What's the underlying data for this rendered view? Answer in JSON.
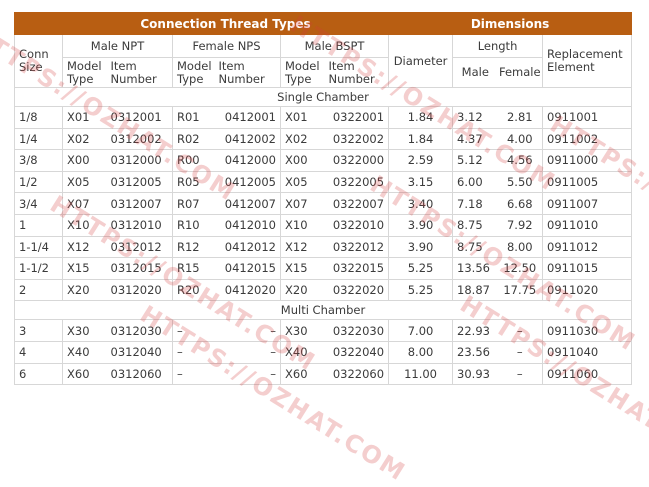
{
  "header": {
    "connection_thread_types": "Connection Thread Types",
    "dimensions": "Dimensions",
    "conn_size": "Conn Size",
    "male_npt": "Male NPT",
    "female_nps": "Female NPS",
    "male_bspt": "Male BSPT",
    "diameter": "Diameter",
    "length": "Length",
    "replacement_element": "Replacement Element",
    "model_type": "Model Type",
    "item_number": "Item Number",
    "male": "Male",
    "female": "Female"
  },
  "sections": [
    {
      "title": "Single Chamber",
      "rows": [
        [
          "1/8",
          "X01",
          "0312001",
          "R01",
          "0412001",
          "X01",
          "0322001",
          "1.84",
          "3.12",
          "2.81",
          "0911001"
        ],
        [
          "1/4",
          "X02",
          "0312002",
          "R02",
          "0412002",
          "X02",
          "0322002",
          "1.84",
          "4.37",
          "4.00",
          "0911002"
        ],
        [
          "3/8",
          "X00",
          "0312000",
          "R00",
          "0412000",
          "X00",
          "0322000",
          "2.59",
          "5.12",
          "4.56",
          "0911000"
        ],
        [
          "1/2",
          "X05",
          "0312005",
          "R05",
          "0412005",
          "X05",
          "0322005",
          "3.15",
          "6.00",
          "5.50",
          "0911005"
        ],
        [
          "3/4",
          "X07",
          "0312007",
          "R07",
          "0412007",
          "X07",
          "0322007",
          "3.40",
          "7.18",
          "6.68",
          "0911007"
        ],
        [
          "1",
          "X10",
          "0312010",
          "R10",
          "0412010",
          "X10",
          "0322010",
          "3.90",
          "8.75",
          "7.92",
          "0911010"
        ],
        [
          "1-1/4",
          "X12",
          "0312012",
          "R12",
          "0412012",
          "X12",
          "0322012",
          "3.90",
          "8.75",
          "8.00",
          "0911012"
        ],
        [
          "1-1/2",
          "X15",
          "0312015",
          "R15",
          "0412015",
          "X15",
          "0322015",
          "5.25",
          "13.56",
          "12.50",
          "0911015"
        ],
        [
          "2",
          "X20",
          "0312020",
          "R20",
          "0412020",
          "X20",
          "0322020",
          "5.25",
          "18.87",
          "17.75",
          "0911020"
        ]
      ]
    },
    {
      "title": "Multi Chamber",
      "rows": [
        [
          "3",
          "X30",
          "0312030",
          "–",
          "–",
          "X30",
          "0322030",
          "7.00",
          "22.93",
          "–",
          "0911030"
        ],
        [
          "4",
          "X40",
          "0312040",
          "–",
          "–",
          "X40",
          "0322040",
          "8.00",
          "23.56",
          "–",
          "0911040"
        ],
        [
          "6",
          "X60",
          "0312060",
          "–",
          "–",
          "X60",
          "0322060",
          "11.00",
          "30.93",
          "–",
          "0911060"
        ]
      ]
    }
  ],
  "watermark_text": "HTTPS://OZHAT.COM"
}
